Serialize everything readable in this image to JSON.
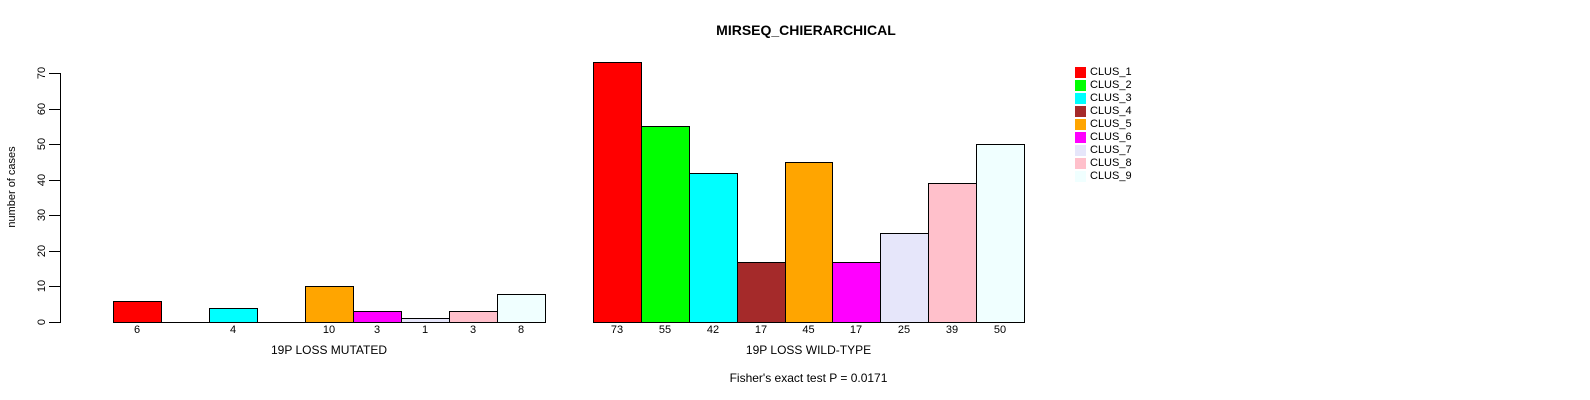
{
  "title": "MIRSEQ_CHIERARCHICAL",
  "annotation_text": "Fisher's exact test P = 0.0171",
  "chart_data": {
    "type": "bar",
    "title": "MIRSEQ_CHIERARCHICAL",
    "ylabel": "number of cases",
    "xlabel": "",
    "ylim": [
      0,
      70
    ],
    "yticks": [
      0,
      10,
      20,
      30,
      40,
      50,
      60,
      70
    ],
    "grid": false,
    "legend_position": "right",
    "categories": [
      "CLUS_1",
      "CLUS_2",
      "CLUS_3",
      "CLUS_4",
      "CLUS_5",
      "CLUS_6",
      "CLUS_7",
      "CLUS_8",
      "CLUS_9"
    ],
    "colors": [
      "#FF0000",
      "#00FF00",
      "#00FFFF",
      "#A52A2A",
      "#FFA500",
      "#FF00FF",
      "#E6E6FA",
      "#FFC0CB",
      "#F0FFFF"
    ],
    "bar_border_color": "#000000",
    "series": [
      {
        "name": "19P LOSS MUTATED",
        "values": [
          6,
          0,
          4,
          0,
          10,
          3,
          1,
          3,
          8
        ]
      },
      {
        "name": "19P LOSS WILD-TYPE",
        "values": [
          73,
          55,
          42,
          17,
          45,
          17,
          25,
          39,
          50
        ]
      }
    ],
    "zero_value_labels_hidden": true,
    "annotation": "Fisher's exact test P = 0.0171"
  },
  "legend": {
    "items": [
      {
        "label": "CLUS_1",
        "color": "#FF0000"
      },
      {
        "label": "CLUS_2",
        "color": "#00FF00"
      },
      {
        "label": "CLUS_3",
        "color": "#00FFFF"
      },
      {
        "label": "CLUS_4",
        "color": "#A52A2A"
      },
      {
        "label": "CLUS_5",
        "color": "#FFA500"
      },
      {
        "label": "CLUS_6",
        "color": "#FF00FF"
      },
      {
        "label": "CLUS_7",
        "color": "#E6E6FA"
      },
      {
        "label": "CLUS_8",
        "color": "#FFC0CB"
      },
      {
        "label": "CLUS_9",
        "color": "#F0FFFF"
      }
    ]
  }
}
